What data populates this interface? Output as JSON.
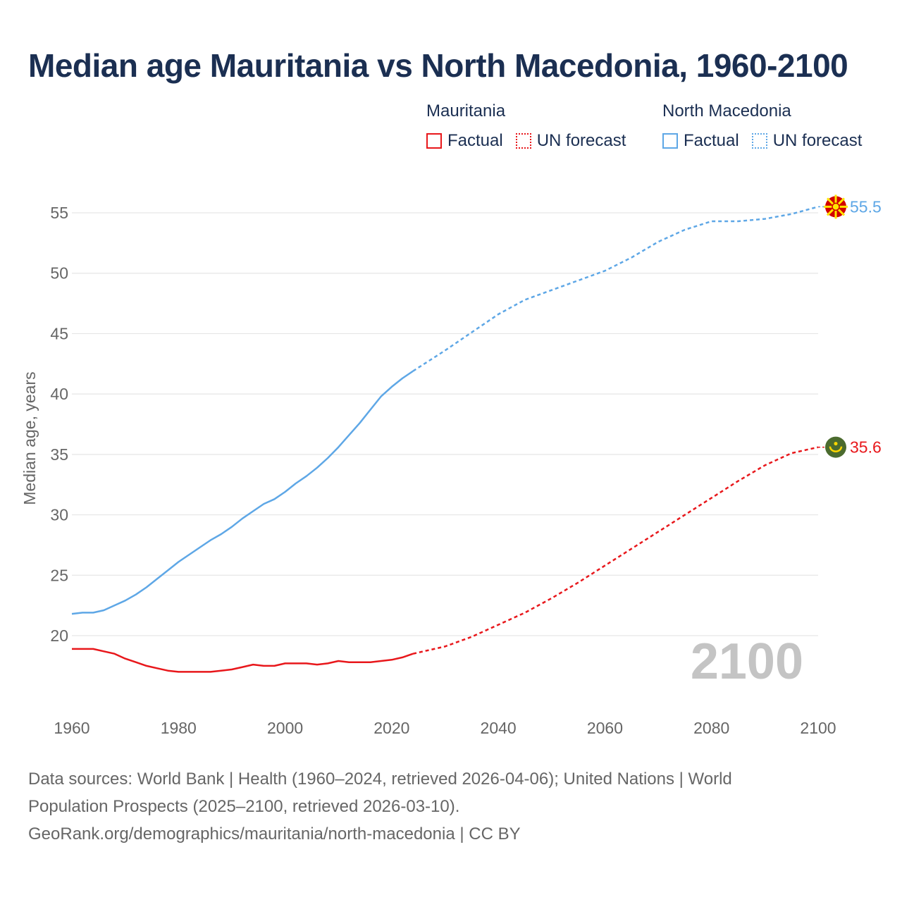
{
  "title": "Median age Mauritania vs North Macedonia, 1960-2100",
  "legend": {
    "groups": [
      {
        "name": "Mauritania",
        "color": "#e8171b",
        "factual_label": "Factual",
        "forecast_label": "UN forecast"
      },
      {
        "name": "North Macedonia",
        "color": "#5ea7e6",
        "factual_label": "Factual",
        "forecast_label": "UN forecast"
      }
    ]
  },
  "footer": {
    "line1": "Data sources: World Bank | Health (1960–2024, retrieved 2026-04-06); United Nations | World",
    "line2": "Population Prospects (2025–2100, retrieved 2026-03-10).",
    "line3": "GeoRank.org/demographics/mauritania/north-macedonia | CC BY"
  },
  "chart_data": {
    "type": "line",
    "title": "Median age Mauritania vs North Macedonia, 1960-2100",
    "xlabel": "",
    "ylabel": "Median age, years",
    "xlim": [
      1960,
      2100
    ],
    "ylim": [
      15,
      57
    ],
    "x_ticks": [
      1960,
      1980,
      2000,
      2020,
      2040,
      2060,
      2080,
      2100
    ],
    "y_ticks": [
      20,
      25,
      30,
      35,
      40,
      45,
      50,
      55
    ],
    "year_watermark": "2100",
    "series": [
      {
        "name": "Mauritania",
        "color": "#e8171b",
        "end_label": "35.6",
        "flag_icon": "mauritania-flag-icon",
        "factual": {
          "x": [
            1960,
            1962,
            1964,
            1966,
            1968,
            1970,
            1972,
            1974,
            1976,
            1978,
            1980,
            1982,
            1984,
            1986,
            1988,
            1990,
            1992,
            1994,
            1996,
            1998,
            2000,
            2002,
            2004,
            2006,
            2008,
            2010,
            2012,
            2014,
            2016,
            2018,
            2020,
            2022,
            2024
          ],
          "y": [
            18.9,
            18.9,
            18.9,
            18.7,
            18.5,
            18.1,
            17.8,
            17.5,
            17.3,
            17.1,
            17.0,
            17.0,
            17.0,
            17.0,
            17.1,
            17.2,
            17.4,
            17.6,
            17.5,
            17.5,
            17.7,
            17.7,
            17.7,
            17.6,
            17.7,
            17.9,
            17.8,
            17.8,
            17.8,
            17.9,
            18.0,
            18.2,
            18.5
          ]
        },
        "forecast": {
          "x": [
            2024,
            2030,
            2035,
            2040,
            2045,
            2050,
            2055,
            2060,
            2065,
            2070,
            2075,
            2080,
            2085,
            2090,
            2095,
            2100
          ],
          "y": [
            18.5,
            19.1,
            19.9,
            20.9,
            21.9,
            23.1,
            24.4,
            25.8,
            27.2,
            28.6,
            30.0,
            31.4,
            32.8,
            34.1,
            35.1,
            35.6
          ]
        }
      },
      {
        "name": "North Macedonia",
        "color": "#5ea7e6",
        "end_label": "55.5",
        "flag_icon": "north-macedonia-flag-icon",
        "factual": {
          "x": [
            1960,
            1962,
            1964,
            1966,
            1968,
            1970,
            1972,
            1974,
            1976,
            1978,
            1980,
            1982,
            1984,
            1986,
            1988,
            1990,
            1992,
            1994,
            1996,
            1998,
            2000,
            2002,
            2004,
            2006,
            2008,
            2010,
            2012,
            2014,
            2016,
            2018,
            2020,
            2022,
            2024
          ],
          "y": [
            21.8,
            21.9,
            21.9,
            22.1,
            22.5,
            22.9,
            23.4,
            24.0,
            24.7,
            25.4,
            26.1,
            26.7,
            27.3,
            27.9,
            28.4,
            29.0,
            29.7,
            30.3,
            30.9,
            31.3,
            31.9,
            32.6,
            33.2,
            33.9,
            34.7,
            35.6,
            36.6,
            37.6,
            38.7,
            39.8,
            40.6,
            41.3,
            41.9
          ]
        },
        "forecast": {
          "x": [
            2024,
            2030,
            2035,
            2040,
            2045,
            2050,
            2055,
            2060,
            2065,
            2070,
            2075,
            2080,
            2085,
            2090,
            2095,
            2100
          ],
          "y": [
            41.9,
            43.6,
            45.1,
            46.6,
            47.8,
            48.6,
            49.4,
            50.2,
            51.3,
            52.6,
            53.6,
            54.3,
            54.3,
            54.5,
            54.9,
            55.5
          ]
        }
      }
    ]
  }
}
